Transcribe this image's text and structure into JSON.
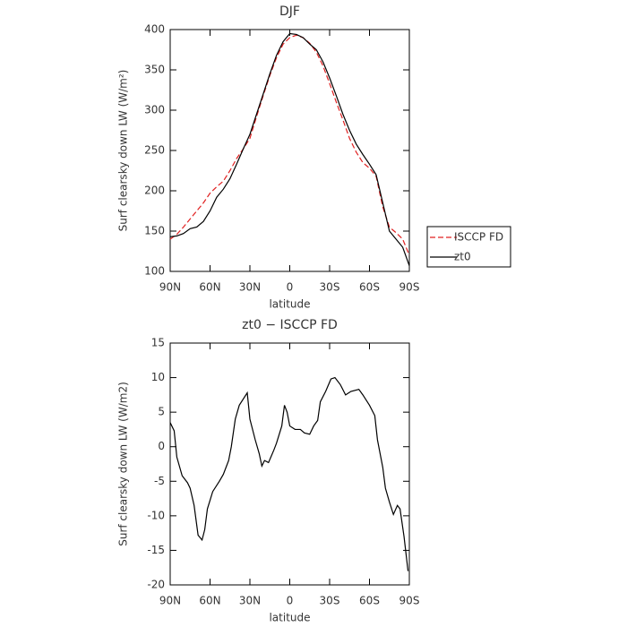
{
  "chart_data": [
    {
      "type": "line",
      "title": "DJF",
      "xlabel": "latitude",
      "ylabel": "Surf clearsky down LW (W/m²)",
      "xlim": [
        90,
        -90
      ],
      "ylim": [
        100,
        400
      ],
      "xticks": [
        {
          "value": 90,
          "label": "90N"
        },
        {
          "value": 60,
          "label": "60N"
        },
        {
          "value": 30,
          "label": "30N"
        },
        0,
        {
          "value": -30,
          "label": "30S"
        },
        {
          "value": -60,
          "label": "60S"
        },
        {
          "value": -90,
          "label": "90S"
        }
      ],
      "yticks": [
        100,
        150,
        200,
        250,
        300,
        350,
        400
      ],
      "legend": "right",
      "x": [
        90,
        85,
        80,
        75,
        70,
        65,
        60,
        55,
        50,
        45,
        40,
        35,
        30,
        25,
        20,
        15,
        10,
        5,
        0,
        -5,
        -10,
        -15,
        -20,
        -25,
        -30,
        -35,
        -40,
        -45,
        -50,
        -55,
        -60,
        -65,
        -70,
        -75,
        -80,
        -85,
        -90
      ],
      "series": [
        {
          "name": "ISCCP FD",
          "color": "#e02020",
          "dash": true,
          "values": [
            140,
            146,
            155,
            165,
            175,
            185,
            197,
            205,
            212,
            225,
            240,
            252,
            265,
            292,
            318,
            343,
            365,
            382,
            390,
            393,
            390,
            383,
            372,
            355,
            333,
            310,
            288,
            265,
            248,
            235,
            228,
            218,
            180,
            155,
            148,
            140,
            120
          ]
        },
        {
          "name": "zt0",
          "color": "#000000",
          "dash": false,
          "values": [
            143,
            144,
            147,
            153,
            155,
            162,
            175,
            192,
            202,
            215,
            233,
            252,
            270,
            295,
            320,
            345,
            368,
            385,
            395,
            394,
            390,
            382,
            375,
            360,
            340,
            318,
            295,
            275,
            258,
            245,
            233,
            220,
            185,
            150,
            140,
            130,
            107
          ]
        }
      ]
    },
    {
      "type": "line",
      "title": "zt0 − ISCCP FD",
      "xlabel": "latitude",
      "ylabel": "Surf clearsky down LW (W/m2)",
      "xlim": [
        90,
        -90
      ],
      "ylim": [
        -20,
        15
      ],
      "xticks": [
        {
          "value": 90,
          "label": "90N"
        },
        {
          "value": 60,
          "label": "60N"
        },
        {
          "value": 30,
          "label": "30N"
        },
        0,
        {
          "value": -30,
          "label": "30S"
        },
        {
          "value": -60,
          "label": "60S"
        },
        {
          "value": -90,
          "label": "90S"
        }
      ],
      "yticks": [
        -20,
        -15,
        -10,
        -5,
        0,
        5,
        10,
        15
      ],
      "x": [
        90,
        87,
        85,
        81,
        77,
        75,
        72,
        69,
        66,
        64,
        62,
        58,
        53,
        50,
        46,
        44,
        41,
        38,
        32,
        30,
        26,
        23,
        21,
        19,
        16,
        12,
        10,
        6,
        4,
        2,
        0,
        -4,
        -8,
        -11,
        -15,
        -18,
        -21,
        -23,
        -27,
        -31,
        -34,
        -38,
        -42,
        -46,
        -52,
        -55,
        -60,
        -64,
        -66,
        -70,
        -72,
        -75,
        -78,
        -81,
        -83,
        -86,
        -89
      ],
      "series": [
        {
          "color": "#000000",
          "dash": false,
          "values": [
            3.5,
            2.3,
            -1.5,
            -4.2,
            -5.2,
            -6,
            -8.5,
            -12.8,
            -13.5,
            -12,
            -9,
            -6.5,
            -5,
            -4,
            -2,
            0,
            4,
            6,
            7.8,
            4,
            1,
            -1,
            -2.8,
            -2,
            -2.3,
            -0.5,
            0.5,
            3,
            6,
            5,
            3,
            2.5,
            2.5,
            2,
            1.8,
            3,
            3.8,
            6.5,
            8,
            9.8,
            10,
            9,
            7.5,
            8,
            8.3,
            7.5,
            6,
            4.5,
            1,
            -3,
            -6,
            -8,
            -9.8,
            -8.5,
            -9,
            -13,
            -18
          ]
        }
      ]
    }
  ]
}
